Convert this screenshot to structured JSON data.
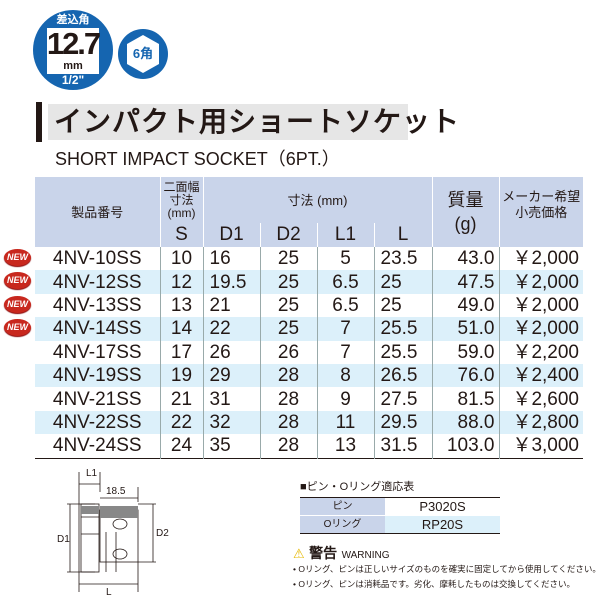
{
  "badge": {
    "top": "差込角",
    "size": "12.7",
    "unit": "mm",
    "inch": "1/2\"",
    "hex": "6角"
  },
  "title": "インパクト用ショートソケット",
  "subtitle": "SHORT IMPACT  SOCKET（6PT.）",
  "colors": {
    "brand": "#1565b0",
    "header": "#c9d4ea",
    "row_alt": "#dcf0fa",
    "new": "#c8281e"
  },
  "table": {
    "headers": {
      "product": "製品番号",
      "width": "二面幅\n寸法\n(mm)",
      "dims": "寸法 (mm)",
      "mass": "質量\n(g)",
      "price": "メーカー希望\n小売価格",
      "S": "S",
      "D1": "D1",
      "D2": "D2",
      "L1": "L1",
      "L": "L"
    },
    "new_label": "NEW",
    "rows": [
      [
        "4NV-10SS",
        "10",
        "16",
        "25",
        "5",
        "23.5",
        "43.0",
        "￥2,000",
        true
      ],
      [
        "4NV-12SS",
        "12",
        "19.5",
        "25",
        "6.5",
        "25",
        "47.5",
        "￥2,000",
        true
      ],
      [
        "4NV-13SS",
        "13",
        "21",
        "25",
        "6.5",
        "25",
        "49.0",
        "￥2,000",
        true
      ],
      [
        "4NV-14SS",
        "14",
        "22",
        "25",
        "7",
        "25.5",
        "51.0",
        "￥2,000",
        true
      ],
      [
        "4NV-17SS",
        "17",
        "26",
        "26",
        "7",
        "25.5",
        "59.0",
        "￥2,200",
        false
      ],
      [
        "4NV-19SS",
        "19",
        "29",
        "28",
        "8",
        "26.5",
        "76.0",
        "￥2,400",
        false
      ],
      [
        "4NV-21SS",
        "21",
        "31",
        "28",
        "9",
        "27.5",
        "81.5",
        "￥2,600",
        false
      ],
      [
        "4NV-22SS",
        "22",
        "32",
        "28",
        "11",
        "29.5",
        "88.0",
        "￥2,800",
        false
      ],
      [
        "4NV-24SS",
        "24",
        "35",
        "28",
        "13",
        "31.5",
        "103.0",
        "￥3,000",
        false
      ]
    ]
  },
  "diagram": {
    "L1": "L1",
    "dim": "18.5",
    "D1": "D1",
    "D2": "D2",
    "L": "L"
  },
  "pin_table": {
    "title": "■ピン・Oリング適応表",
    "rows": [
      [
        "ピン",
        "P3020S"
      ],
      [
        "Oリング",
        "RP20S"
      ]
    ]
  },
  "warning": {
    "title": "警告",
    "en": "WARNING",
    "items": [
      "• Oリング、ピンは正しいサイズのものを確実に固定してから使用してください。",
      "• Oリング、ピンは消耗品です。劣化、摩耗したものは交換してください。"
    ]
  }
}
